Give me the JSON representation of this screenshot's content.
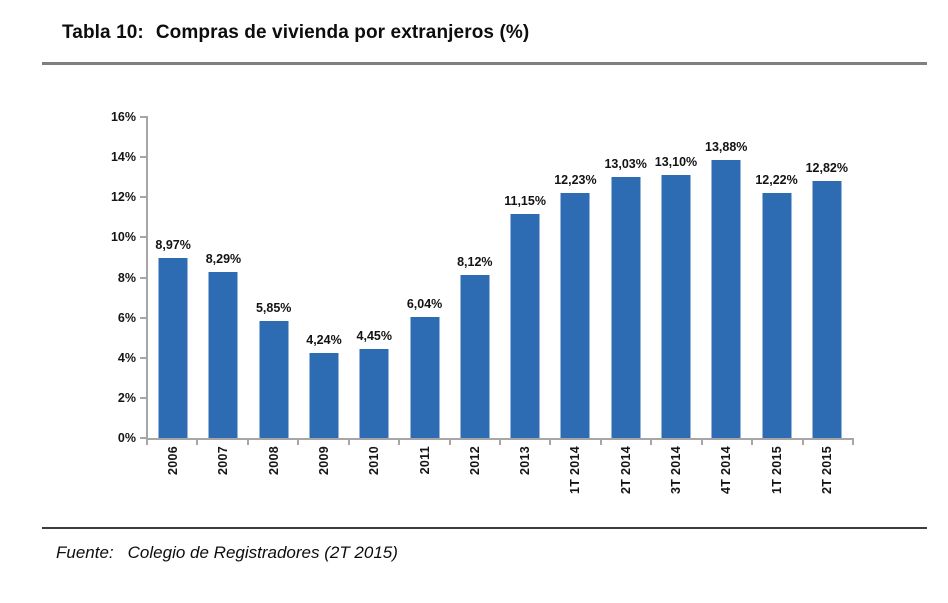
{
  "page": {
    "title_label": "Tabla 10:",
    "title_text": "Compras de vivienda por extranjeros (%)",
    "source_label": "Fuente:",
    "source_text": "Colegio de Registradores (2T 2015)"
  },
  "chart_data": {
    "type": "bar",
    "title": "Tabla 10: Compras de vivienda por extranjeros (%)",
    "categories": [
      "2006",
      "2007",
      "2008",
      "2009",
      "2010",
      "2011",
      "2012",
      "2013",
      "1T 2014",
      "2T 2014",
      "3T 2014",
      "4T 2014",
      "1T 2015",
      "2T 2015"
    ],
    "values": [
      8.97,
      8.29,
      5.85,
      4.24,
      4.45,
      6.04,
      8.12,
      11.15,
      12.23,
      13.03,
      13.1,
      13.88,
      12.22,
      12.82
    ],
    "value_labels": [
      "8,97%",
      "8,29%",
      "5,85%",
      "4,24%",
      "4,45%",
      "6,04%",
      "8,12%",
      "11,15%",
      "12,23%",
      "13,03%",
      "13,10%",
      "13,88%",
      "12,22%",
      "12,82%"
    ],
    "xlabel": "",
    "ylabel": "",
    "ylim": [
      0,
      16
    ],
    "ytick_step": 2,
    "ytick_labels": [
      "0%",
      "2%",
      "4%",
      "6%",
      "8%",
      "10%",
      "12%",
      "14%",
      "16%"
    ],
    "grid": false,
    "legend": "none",
    "bar_color": "#2d6bb2",
    "axis_color": "#a6a6a6",
    "source": "Fuente: Colegio de Registradores (2T 2015)"
  }
}
